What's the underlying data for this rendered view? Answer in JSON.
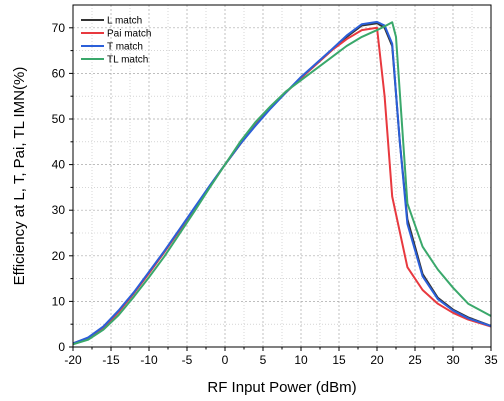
{
  "chart_data": {
    "type": "line",
    "xlabel": "RF Input Power (dBm)",
    "ylabel": "Efficiency at L, T, Pai, TL IMN(%)",
    "xlim": [
      -20,
      35
    ],
    "ylim": [
      0,
      75
    ],
    "xticks": [
      -20,
      -15,
      -10,
      -5,
      0,
      5,
      10,
      15,
      20,
      25,
      30,
      35
    ],
    "yticks": [
      0,
      10,
      20,
      30,
      40,
      50,
      60,
      70
    ],
    "xtick_labels": [
      "-20",
      "-15",
      "-10",
      "-5",
      "0",
      "5",
      "10",
      "15",
      "20",
      "25",
      "30",
      "35"
    ],
    "ytick_labels": [
      "0",
      "10",
      "20",
      "30",
      "40",
      "50",
      "60",
      "70"
    ],
    "grid": true,
    "legend_position": "top-left",
    "series": [
      {
        "name": "L match",
        "color": "#333333",
        "x": [
          -20,
          -18,
          -16,
          -14,
          -12,
          -10,
          -8,
          -6,
          -4,
          -2,
          0,
          2,
          4,
          6,
          8,
          10,
          12,
          14,
          16,
          18,
          20,
          21,
          22,
          23,
          24,
          26,
          28,
          30,
          32,
          35
        ],
        "y": [
          0.8,
          2.0,
          4.3,
          7.7,
          11.8,
          16.2,
          20.8,
          25.6,
          30.4,
          35.3,
          40.0,
          44.5,
          48.8,
          52.5,
          55.8,
          59.0,
          62.0,
          65.0,
          68.0,
          70.5,
          71.0,
          70.0,
          66.0,
          45.0,
          28.0,
          16.0,
          10.8,
          8.2,
          6.5,
          4.6
        ]
      },
      {
        "name": "Pai match",
        "color": "#e8393f",
        "x": [
          -20,
          -18,
          -16,
          -14,
          -12,
          -10,
          -8,
          -6,
          -4,
          -2,
          0,
          2,
          4,
          6,
          8,
          10,
          12,
          14,
          16,
          18,
          20,
          21,
          22,
          24,
          26,
          28,
          30,
          32,
          35
        ],
        "y": [
          0.8,
          2.0,
          4.3,
          7.7,
          11.8,
          16.2,
          20.8,
          25.6,
          30.4,
          35.3,
          40.0,
          44.5,
          48.8,
          52.5,
          55.8,
          59.0,
          62.0,
          65.0,
          67.5,
          69.5,
          70.0,
          55.0,
          33.0,
          17.5,
          12.5,
          9.5,
          7.5,
          6.0,
          4.5
        ]
      },
      {
        "name": "T match",
        "color": "#2b5fd9",
        "x": [
          -20,
          -18,
          -16,
          -14,
          -12,
          -10,
          -8,
          -6,
          -4,
          -2,
          0,
          2,
          4,
          6,
          8,
          10,
          12,
          14,
          16,
          18,
          20,
          21,
          22,
          23,
          24,
          26,
          28,
          30,
          32,
          35
        ],
        "y": [
          0.8,
          2.1,
          4.5,
          8.0,
          12.0,
          16.5,
          21.0,
          25.8,
          30.6,
          35.4,
          40.0,
          44.5,
          48.5,
          52.3,
          55.8,
          59.2,
          62.2,
          65.2,
          68.3,
          70.8,
          71.3,
          70.5,
          66.5,
          45.0,
          27.0,
          15.5,
          10.5,
          8.0,
          6.3,
          4.6
        ]
      },
      {
        "name": "TL match",
        "color": "#3aa86b",
        "x": [
          -20,
          -18,
          -16,
          -14,
          -12,
          -10,
          -8,
          -6,
          -4,
          -2,
          0,
          2,
          4,
          6,
          8,
          10,
          12,
          14,
          16,
          18,
          20,
          21,
          22,
          22.5,
          24,
          26,
          28,
          30,
          32,
          35
        ],
        "y": [
          0.6,
          1.6,
          3.8,
          7.0,
          11.0,
          15.3,
          19.8,
          24.8,
          29.8,
          35.0,
          40.0,
          45.0,
          49.3,
          52.8,
          56.0,
          58.5,
          61.0,
          63.5,
          66.0,
          68.0,
          69.5,
          70.3,
          71.2,
          68.0,
          31.5,
          22.0,
          17.0,
          13.0,
          9.5,
          6.8
        ]
      }
    ]
  }
}
